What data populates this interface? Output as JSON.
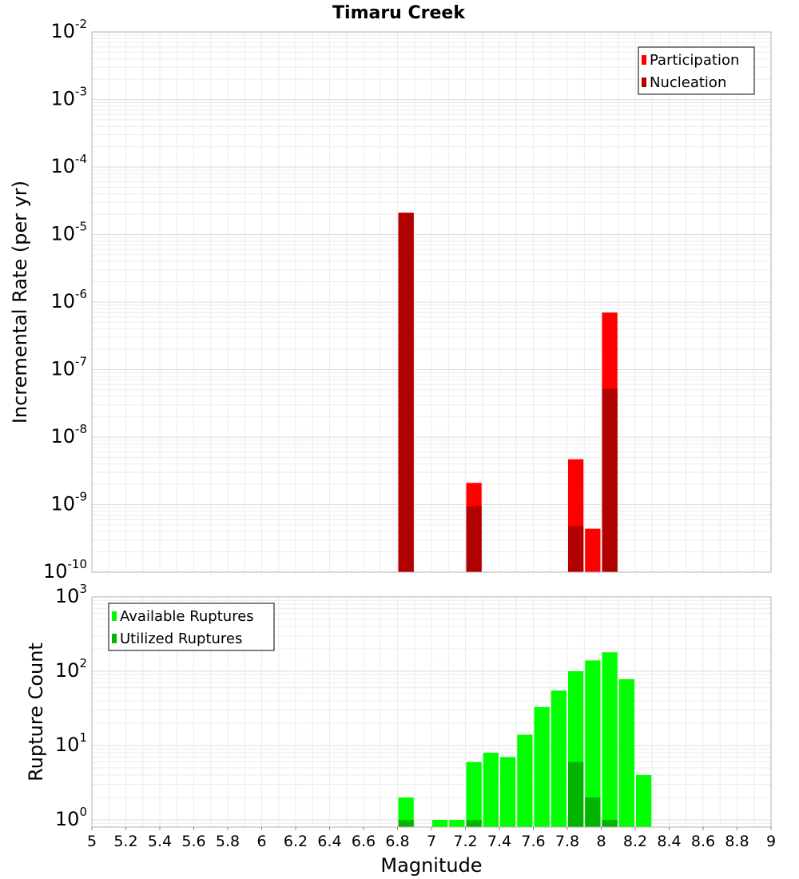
{
  "title": "Timaru Creek",
  "chart_data": [
    {
      "type": "bar",
      "scale": "log",
      "ylabel": "Incremental Rate (per yr)",
      "xlabel": "",
      "xlim": [
        5,
        9
      ],
      "ylim": [
        1e-10,
        0.01
      ],
      "ytick_bases": [
        "10",
        "10",
        "10",
        "10",
        "10",
        "10",
        "10",
        "10",
        "10"
      ],
      "ytick_exps": [
        "-10",
        "-9",
        "-8",
        "-7",
        "-6",
        "-5",
        "-4",
        "-3",
        "-2"
      ],
      "ytick_values": [
        1e-10,
        1e-09,
        1e-08,
        1e-07,
        1e-06,
        1e-05,
        0.0001,
        0.001,
        0.01
      ],
      "grid": true,
      "legend_position": "top-right",
      "series": [
        {
          "name": "Participation",
          "color": "#ff0000",
          "points": [
            [
              6.85,
              2.1e-05
            ],
            [
              7.25,
              2.1e-09
            ],
            [
              7.85,
              4.7e-09
            ],
            [
              7.95,
              4.4e-10
            ],
            [
              8.05,
              7e-07
            ]
          ]
        },
        {
          "name": "Nucleation",
          "color": "#b00000",
          "points": [
            [
              6.85,
              2.1e-05
            ],
            [
              7.25,
              9.5e-10
            ],
            [
              7.85,
              4.8e-10
            ],
            [
              8.05,
              5.2e-08
            ]
          ]
        }
      ]
    },
    {
      "type": "bar",
      "scale": "log",
      "ylabel": "Rupture Count",
      "xlabel": "Magnitude",
      "xlim": [
        5,
        9
      ],
      "ylim": [
        0.8,
        1000
      ],
      "ytick_bases": [
        "10",
        "10",
        "10",
        "10"
      ],
      "ytick_exps": [
        "0",
        "1",
        "2",
        "3"
      ],
      "ytick_values": [
        1,
        10,
        100,
        1000
      ],
      "xtick_labels": [
        "5",
        "5.2",
        "5.4",
        "5.6",
        "5.8",
        "6",
        "6.2",
        "6.4",
        "6.6",
        "6.8",
        "7",
        "7.2",
        "7.4",
        "7.6",
        "7.8",
        "8",
        "8.2",
        "8.4",
        "8.6",
        "8.8",
        "9"
      ],
      "xtick_values": [
        5,
        5.2,
        5.4,
        5.6,
        5.8,
        6,
        6.2,
        6.4,
        6.6,
        6.8,
        7,
        7.2,
        7.4,
        7.6,
        7.8,
        8,
        8.2,
        8.4,
        8.6,
        8.8,
        9
      ],
      "grid": true,
      "legend_position": "top-left",
      "series": [
        {
          "name": "Available Ruptures",
          "color": "#00ff00",
          "points": [
            [
              6.85,
              2
            ],
            [
              7.05,
              1
            ],
            [
              7.15,
              1
            ],
            [
              7.25,
              6
            ],
            [
              7.35,
              8
            ],
            [
              7.45,
              7
            ],
            [
              7.55,
              14
            ],
            [
              7.65,
              33
            ],
            [
              7.75,
              55
            ],
            [
              7.85,
              100
            ],
            [
              7.95,
              140
            ],
            [
              8.05,
              180
            ],
            [
              8.15,
              78
            ],
            [
              8.25,
              4
            ]
          ]
        },
        {
          "name": "Utilized Ruptures",
          "color": "#00b400",
          "points": [
            [
              6.85,
              1
            ],
            [
              7.25,
              1
            ],
            [
              7.85,
              6
            ],
            [
              7.95,
              2
            ],
            [
              8.05,
              1
            ]
          ]
        }
      ]
    }
  ]
}
